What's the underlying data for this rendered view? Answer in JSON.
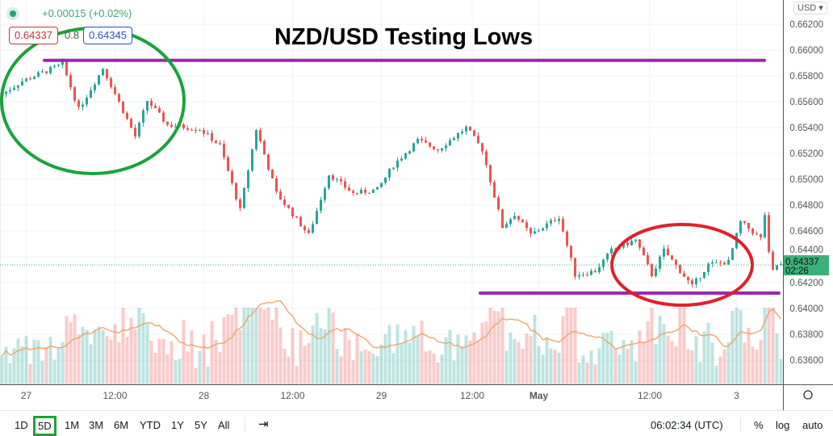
{
  "header": {
    "change": "+0.00015 (+0.02%)",
    "bid": "0.64337",
    "spread": "0.8",
    "ask": "0.64345",
    "currency": "USD ▾"
  },
  "annotation_title": "NZD/USD Testing Lows",
  "colors": {
    "up": "#26a69a",
    "down": "#ef5350",
    "support": "#9c27b0",
    "ellipse_top": "#1aa33a",
    "ellipse_bottom": "#e0202a",
    "last_price_bg": "#3bb07a",
    "volume_ma": "#f0a060"
  },
  "chart_data": {
    "type": "candlestick",
    "symbol": "NZD/USD",
    "x_unit": "bar index",
    "price_path": [
      [
        0,
        0.6564
      ],
      [
        6,
        0.6576
      ],
      [
        16,
        0.6589
      ],
      [
        20,
        0.6554
      ],
      [
        26,
        0.6586
      ],
      [
        34,
        0.6533
      ],
      [
        37,
        0.6561
      ],
      [
        42,
        0.6542
      ],
      [
        50,
        0.6539
      ],
      [
        55,
        0.6526
      ],
      [
        60,
        0.6476
      ],
      [
        64,
        0.6539
      ],
      [
        69,
        0.6489
      ],
      [
        77,
        0.6457
      ],
      [
        82,
        0.6504
      ],
      [
        88,
        0.6489
      ],
      [
        94,
        0.6492
      ],
      [
        98,
        0.6511
      ],
      [
        104,
        0.653
      ],
      [
        109,
        0.6523
      ],
      [
        116,
        0.654
      ],
      [
        120,
        0.6523
      ],
      [
        125,
        0.6463
      ],
      [
        128,
        0.6473
      ],
      [
        132,
        0.6457
      ],
      [
        139,
        0.6471
      ],
      [
        143,
        0.6426
      ],
      [
        148,
        0.6429
      ],
      [
        152,
        0.6445
      ],
      [
        158,
        0.6453
      ],
      [
        162,
        0.6426
      ],
      [
        165,
        0.6445
      ],
      [
        172,
        0.6417
      ],
      [
        176,
        0.6434
      ],
      [
        181,
        0.6436
      ],
      [
        184,
        0.6467
      ],
      [
        189,
        0.6454
      ],
      [
        190,
        0.6473
      ],
      [
        191.5,
        0.6426
      ],
      [
        193,
        0.64337
      ]
    ],
    "y_ticks": [
      "0.66200",
      "0.66000",
      "0.65800",
      "0.65600",
      "0.65400",
      "0.65200",
      "0.65000",
      "0.64800",
      "0.64600",
      "0.64400",
      "0.64200",
      "0.64000",
      "0.63800",
      "0.63600"
    ],
    "ylim": [
      0.6344,
      0.6628
    ],
    "x_ticks": [
      {
        "bar": 6,
        "label": "27"
      },
      {
        "bar": 28,
        "label": "12:00"
      },
      {
        "bar": 50,
        "label": "28"
      },
      {
        "bar": 72,
        "label": "12:00"
      },
      {
        "bar": 94,
        "label": "29"
      },
      {
        "bar": 116.5,
        "label": "12:00"
      },
      {
        "bar": 133,
        "label": "May"
      },
      {
        "bar": 160.5,
        "label": "12:00"
      },
      {
        "bar": 182,
        "label": "3"
      }
    ],
    "last_price": "0.64337",
    "countdown": "02:26",
    "resistance_line": 0.6592,
    "support_line": 0.64119
  },
  "toolbar": {
    "ranges": [
      "1D",
      "5D",
      "1M",
      "3M",
      "6M",
      "YTD",
      "1Y",
      "5Y",
      "All"
    ],
    "selected": "5D",
    "time": "06:02:34 (UTC)",
    "percent": "%",
    "log": "log",
    "auto": "auto"
  }
}
